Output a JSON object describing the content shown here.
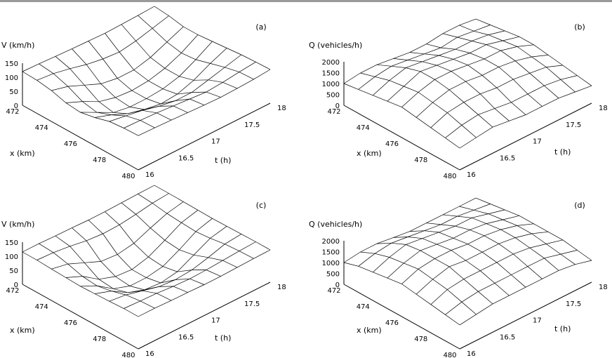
{
  "chart_data": [
    {
      "type": "surface3d",
      "panel_label": "(a)",
      "zlabel": "V (km/h)",
      "xlabel": "x (km)",
      "ylabel": "t (h)",
      "x_ticks": [
        "472",
        "474",
        "476",
        "478",
        "480"
      ],
      "y_ticks": [
        "16",
        "16.5",
        "17",
        "17.5",
        "18"
      ],
      "z_ticks": [
        "0",
        "50",
        "100",
        "150"
      ],
      "xlim": [
        472,
        480
      ],
      "ylim": [
        16,
        18
      ],
      "zlim": [
        0,
        150
      ],
      "x": [
        472,
        473,
        474,
        475,
        476,
        477,
        478,
        479,
        480
      ],
      "t": [
        16.0,
        16.25,
        16.5,
        16.75,
        17.0,
        17.25,
        17.5,
        17.75,
        18.0
      ],
      "z": [
        [
          120,
          118,
          110,
          95,
          90,
          100,
          115,
          120,
          122
        ],
        [
          118,
          112,
          95,
          70,
          60,
          80,
          105,
          118,
          120
        ],
        [
          115,
          100,
          70,
          40,
          30,
          55,
          95,
          115,
          118
        ],
        [
          112,
          85,
          45,
          25,
          20,
          40,
          80,
          110,
          115
        ],
        [
          110,
          75,
          35,
          20,
          20,
          30,
          70,
          105,
          112
        ],
        [
          108,
          70,
          35,
          25,
          25,
          35,
          70,
          100,
          110
        ],
        [
          110,
          80,
          50,
          40,
          40,
          55,
          85,
          105,
          112
        ],
        [
          112,
          95,
          75,
          65,
          70,
          85,
          100,
          112,
          115
        ],
        [
          115,
          110,
          100,
          100,
          105,
          110,
          115,
          118,
          120
        ]
      ]
    },
    {
      "type": "surface3d",
      "panel_label": "(b)",
      "zlabel": "Q (vehicles/h)",
      "xlabel": "x (km)",
      "ylabel": "t (h)",
      "x_ticks": [
        "472",
        "474",
        "476",
        "478",
        "480"
      ],
      "y_ticks": [
        "16",
        "16.5",
        "17",
        "17.5",
        "18"
      ],
      "z_ticks": [
        "0",
        "500",
        "1000",
        "1500",
        "2000"
      ],
      "xlim": [
        472,
        480
      ],
      "ylim": [
        16,
        18
      ],
      "zlim": [
        0,
        2000
      ],
      "x": [
        472,
        473,
        474,
        475,
        476,
        477,
        478,
        479,
        480
      ],
      "t": [
        16.0,
        16.25,
        16.5,
        16.75,
        17.0,
        17.25,
        17.5,
        17.75,
        18.0
      ],
      "z": [
        [
          1000,
          1100,
          1200,
          1300,
          1400,
          1300,
          1200,
          1100,
          1000
        ],
        [
          1100,
          1300,
          1500,
          1600,
          1700,
          1600,
          1500,
          1300,
          1100
        ],
        [
          1100,
          1400,
          1700,
          1900,
          1900,
          1800,
          1600,
          1400,
          1200
        ],
        [
          1000,
          1300,
          1600,
          1800,
          1900,
          1800,
          1600,
          1300,
          1100
        ],
        [
          900,
          1200,
          1500,
          1700,
          1800,
          1700,
          1500,
          1200,
          1000
        ],
        [
          900,
          1100,
          1400,
          1600,
          1700,
          1700,
          1500,
          1200,
          1000
        ],
        [
          1000,
          1200,
          1400,
          1600,
          1700,
          1600,
          1400,
          1200,
          1000
        ],
        [
          1000,
          1100,
          1300,
          1400,
          1500,
          1400,
          1300,
          1100,
          900
        ],
        [
          900,
          1000,
          1100,
          1200,
          1200,
          1100,
          1000,
          900,
          800
        ]
      ]
    },
    {
      "type": "surface3d",
      "panel_label": "(c)",
      "zlabel": "V (km/h)",
      "xlabel": "x (km)",
      "ylabel": "t (h)",
      "x_ticks": [
        "472",
        "474",
        "476",
        "478",
        "480"
      ],
      "y_ticks": [
        "16",
        "16.5",
        "17",
        "17.5",
        "18"
      ],
      "z_ticks": [
        "0",
        "50",
        "100",
        "150"
      ],
      "xlim": [
        472,
        480
      ],
      "ylim": [
        16,
        18
      ],
      "zlim": [
        0,
        150
      ],
      "x": [
        472,
        473,
        474,
        475,
        476,
        477,
        478,
        479,
        480
      ],
      "t": [
        16.0,
        16.25,
        16.5,
        16.75,
        17.0,
        17.25,
        17.5,
        17.75,
        18.0
      ],
      "z": [
        [
          115,
          115,
          112,
          110,
          108,
          110,
          112,
          115,
          115
        ],
        [
          115,
          112,
          100,
          85,
          80,
          90,
          105,
          112,
          115
        ],
        [
          113,
          105,
          75,
          45,
          40,
          55,
          90,
          110,
          113
        ],
        [
          112,
          95,
          50,
          25,
          20,
          35,
          75,
          105,
          112
        ],
        [
          110,
          90,
          45,
          20,
          20,
          30,
          70,
          102,
          110
        ],
        [
          110,
          92,
          55,
          35,
          30,
          40,
          75,
          104,
          110
        ],
        [
          112,
          100,
          80,
          65,
          60,
          70,
          90,
          108,
          112
        ],
        [
          114,
          110,
          102,
          98,
          95,
          100,
          108,
          112,
          114
        ],
        [
          115,
          115,
          114,
          113,
          112,
          113,
          114,
          115,
          115
        ]
      ]
    },
    {
      "type": "surface3d",
      "panel_label": "(d)",
      "zlabel": "Q (vehicles/h)",
      "xlabel": "x (km)",
      "ylabel": "t (h)",
      "x_ticks": [
        "472",
        "474",
        "476",
        "478",
        "480"
      ],
      "y_ticks": [
        "16",
        "16.5",
        "17",
        "17.5",
        "18"
      ],
      "z_ticks": [
        "0",
        "500",
        "1000",
        "1500",
        "2000"
      ],
      "xlim": [
        472,
        480
      ],
      "ylim": [
        16,
        18
      ],
      "zlim": [
        0,
        2000
      ],
      "x": [
        472,
        473,
        474,
        475,
        476,
        477,
        478,
        479,
        480
      ],
      "t": [
        16.0,
        16.25,
        16.5,
        16.75,
        17.0,
        17.25,
        17.5,
        17.75,
        18.0
      ],
      "z": [
        [
          1000,
          1200,
          1300,
          1400,
          1500,
          1400,
          1300,
          1200,
          1100
        ],
        [
          1100,
          1400,
          1600,
          1700,
          1800,
          1700,
          1600,
          1400,
          1200
        ],
        [
          1100,
          1500,
          1800,
          1900,
          1900,
          1900,
          1700,
          1500,
          1300
        ],
        [
          1000,
          1400,
          1700,
          1800,
          1900,
          1800,
          1700,
          1500,
          1300
        ],
        [
          900,
          1300,
          1600,
          1700,
          1800,
          1800,
          1700,
          1500,
          1300
        ],
        [
          900,
          1200,
          1500,
          1700,
          1800,
          1800,
          1700,
          1500,
          1300
        ],
        [
          900,
          1200,
          1500,
          1600,
          1700,
          1700,
          1600,
          1500,
          1300
        ],
        [
          900,
          1100,
          1300,
          1400,
          1500,
          1500,
          1400,
          1300,
          1200
        ],
        [
          900,
          1000,
          1100,
          1200,
          1200,
          1200,
          1200,
          1100,
          1000
        ]
      ]
    }
  ]
}
